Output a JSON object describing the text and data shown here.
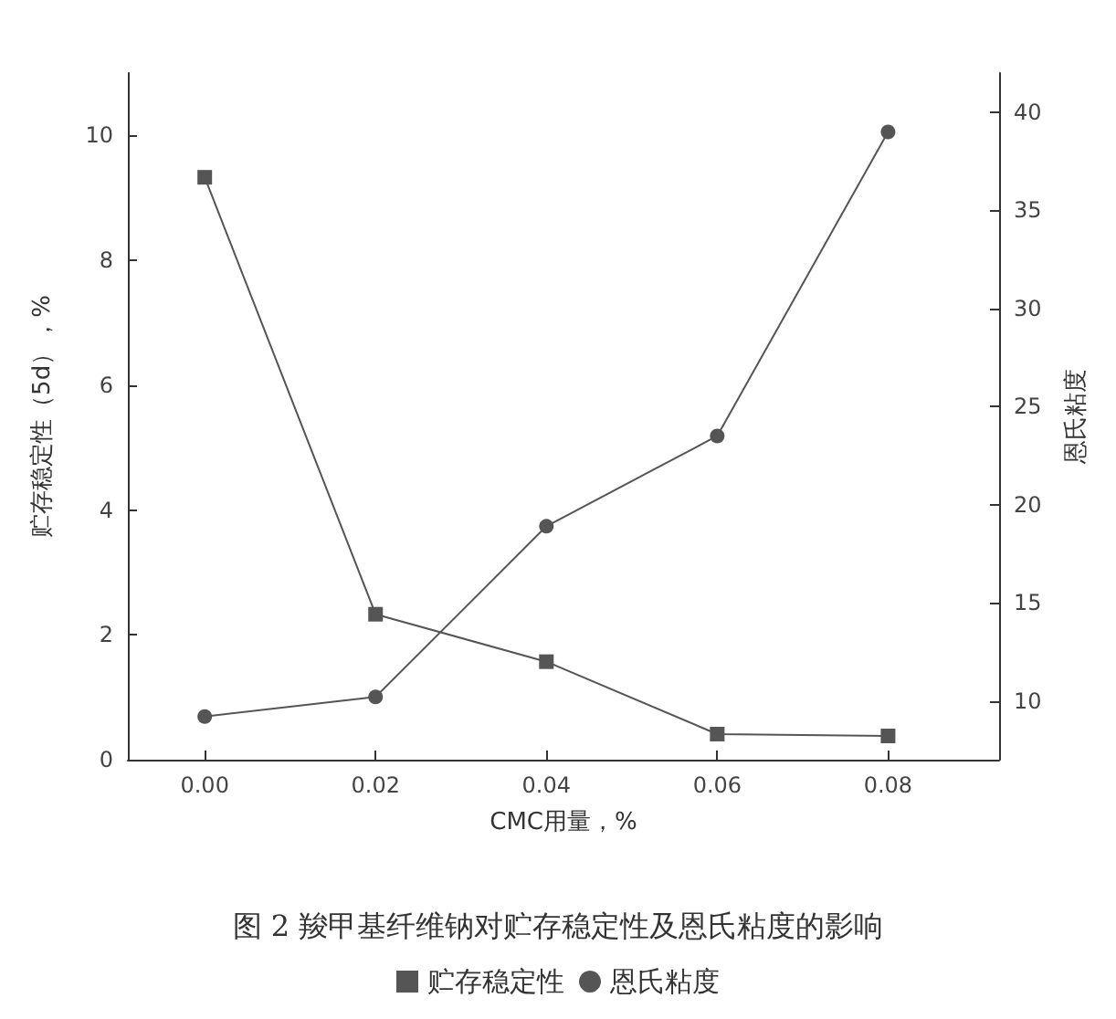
{
  "chart_data": {
    "type": "line",
    "title": "图 2 羧甲基纤维钠对贮存稳定性及恩氏粘度的影响",
    "xlabel": "CMC用量，%",
    "ylabel": "贮存稳定性（5d），%",
    "y2label": "恩氏粘度",
    "x": [
      0,
      0.02,
      0.04,
      0.06,
      0.08
    ],
    "series": [
      {
        "name": "贮存稳定性",
        "color": "#555555",
        "marker": "square",
        "values": [
          9.33,
          2.33,
          1.57,
          0.41,
          0.38
        ]
      },
      {
        "name": "恩氏粘度",
        "color": "#555555",
        "marker": "circle",
        "axis": "y2",
        "values": [
          9.2,
          10.2,
          18.9,
          23.5,
          39.0
        ]
      }
    ],
    "xlim": [
      -0.009,
      0.093
    ],
    "xticks": [
      {
        "value": 0,
        "label": "0.00"
      },
      {
        "value": 0.02,
        "label": "0.02"
      },
      {
        "value": 0.04,
        "label": "0.04"
      },
      {
        "value": 0.06,
        "label": "0.06"
      },
      {
        "value": 0.08,
        "label": "0.08"
      }
    ],
    "ylim": [
      0,
      11
    ],
    "yticks": [
      0,
      2,
      4,
      6,
      8,
      10
    ],
    "y2lim": [
      7,
      42
    ],
    "y2ticks": [
      10,
      15,
      20,
      25,
      30,
      35,
      40
    ],
    "grid": false,
    "legend": "bottom",
    "line_style": "solid"
  }
}
